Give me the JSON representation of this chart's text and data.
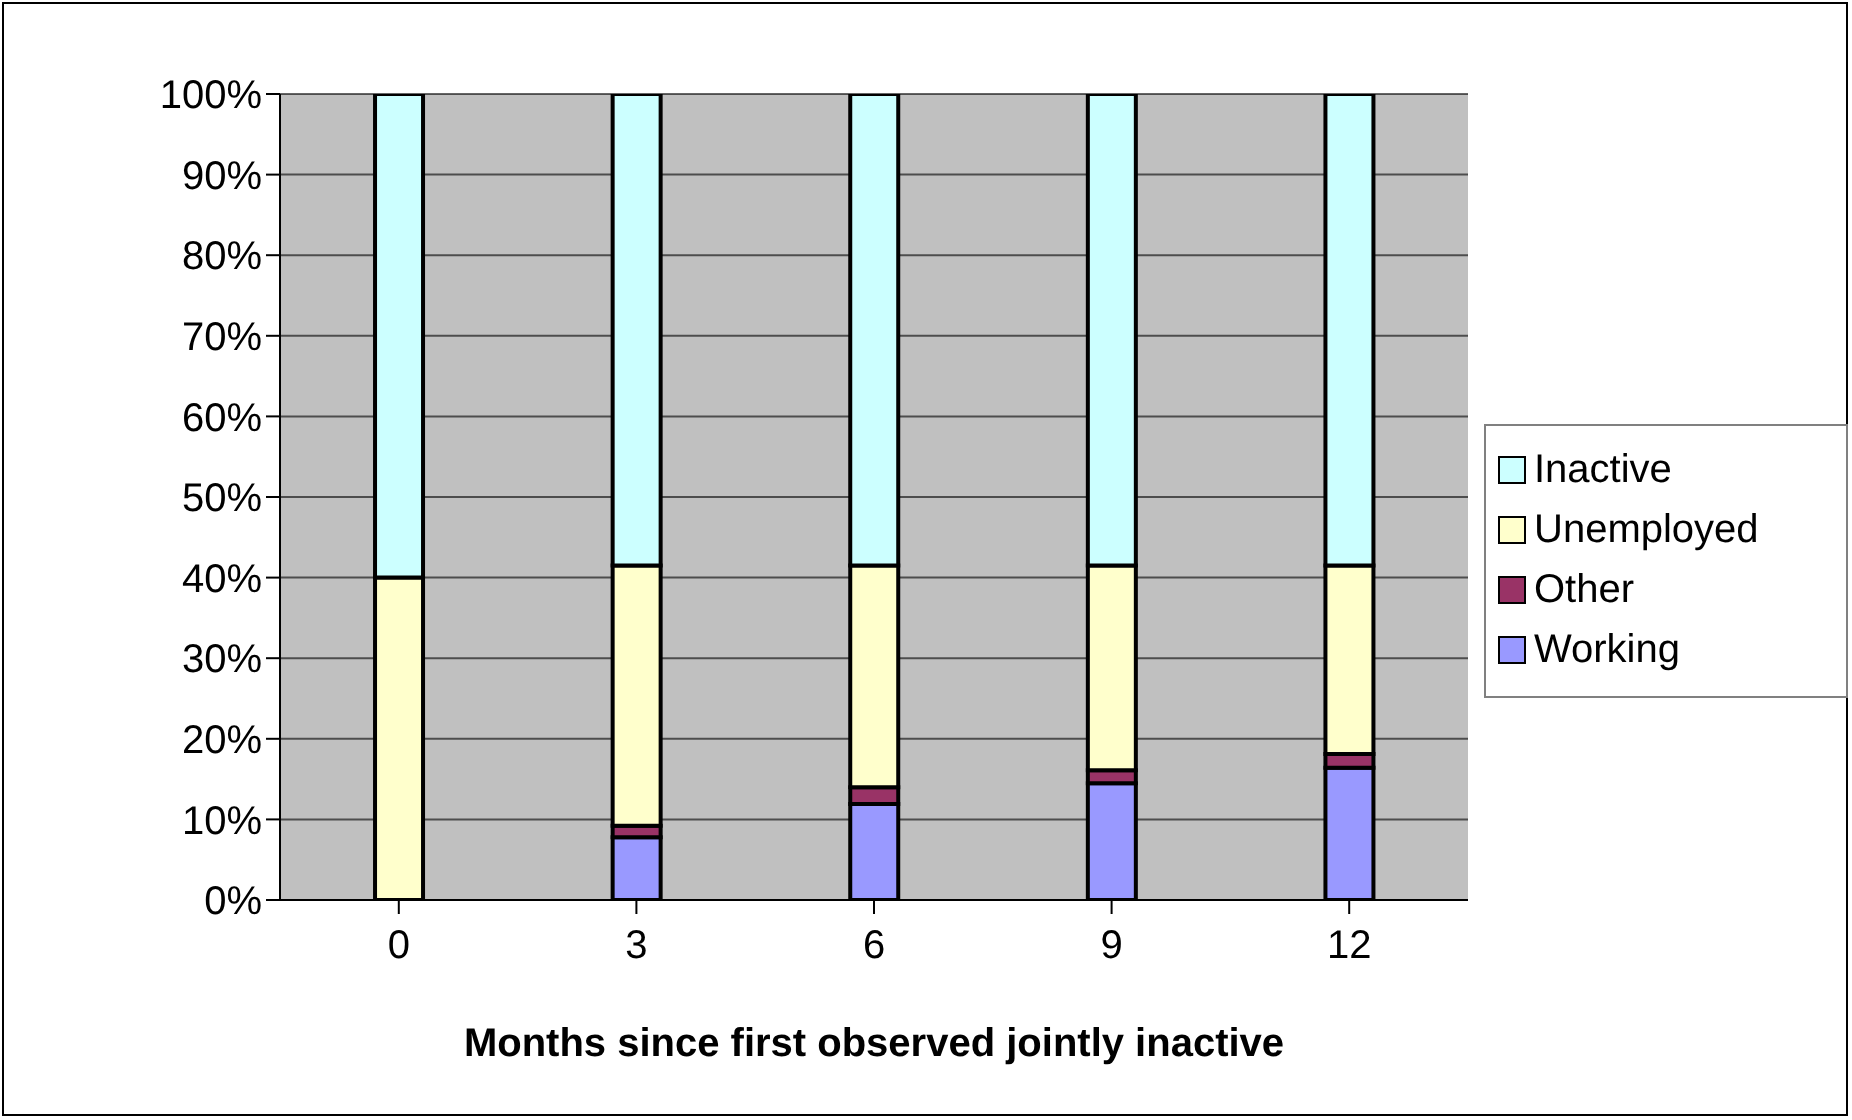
{
  "chart_data": {
    "type": "bar",
    "stacked": true,
    "xlabel": "Months since first observed jointly inactive",
    "categories": [
      "0",
      "3",
      "6",
      "9",
      "12"
    ],
    "series": [
      {
        "name": "Working",
        "color": "#9999ff",
        "values": [
          0,
          7.8,
          11.9,
          14.5,
          16.4
        ]
      },
      {
        "name": "Other",
        "color": "#993366",
        "values": [
          0,
          1.4,
          2.1,
          1.6,
          1.7
        ]
      },
      {
        "name": "Unemployed",
        "color": "#ffffcc",
        "values": [
          40,
          32.3,
          27.5,
          25.4,
          23.4
        ]
      },
      {
        "name": "Inactive",
        "color": "#ccffff",
        "values": [
          60,
          58.5,
          58.5,
          58.5,
          58.5
        ]
      }
    ],
    "ylim": [
      0,
      100
    ],
    "yticks": [
      {
        "value": 0,
        "label": "0%"
      },
      {
        "value": 10,
        "label": "10%"
      },
      {
        "value": 20,
        "label": "20%"
      },
      {
        "value": 30,
        "label": "30%"
      },
      {
        "value": 40,
        "label": "40%"
      },
      {
        "value": 50,
        "label": "50%"
      },
      {
        "value": 60,
        "label": "60%"
      },
      {
        "value": 70,
        "label": "70%"
      },
      {
        "value": 80,
        "label": "80%"
      },
      {
        "value": 90,
        "label": "90%"
      },
      {
        "value": 100,
        "label": "100%"
      }
    ],
    "grid": "y",
    "legend": "right"
  }
}
